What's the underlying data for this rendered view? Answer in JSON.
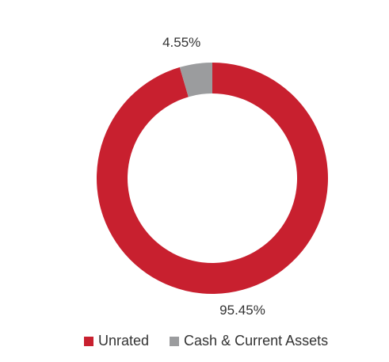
{
  "chart_data": {
    "type": "pie",
    "variant": "donut",
    "title": "",
    "categories": [
      "Unrated",
      "Cash & Current Assets"
    ],
    "values": [
      95.45,
      4.55
    ],
    "value_labels": [
      "95.45%",
      "4.55%"
    ],
    "colors": [
      "#c8202f",
      "#9b9c9e"
    ],
    "legend_position": "bottom"
  },
  "legend": {
    "items": [
      {
        "label": "Unrated",
        "color": "#c8202f"
      },
      {
        "label": "Cash & Current Assets",
        "color": "#9b9c9e"
      }
    ]
  }
}
